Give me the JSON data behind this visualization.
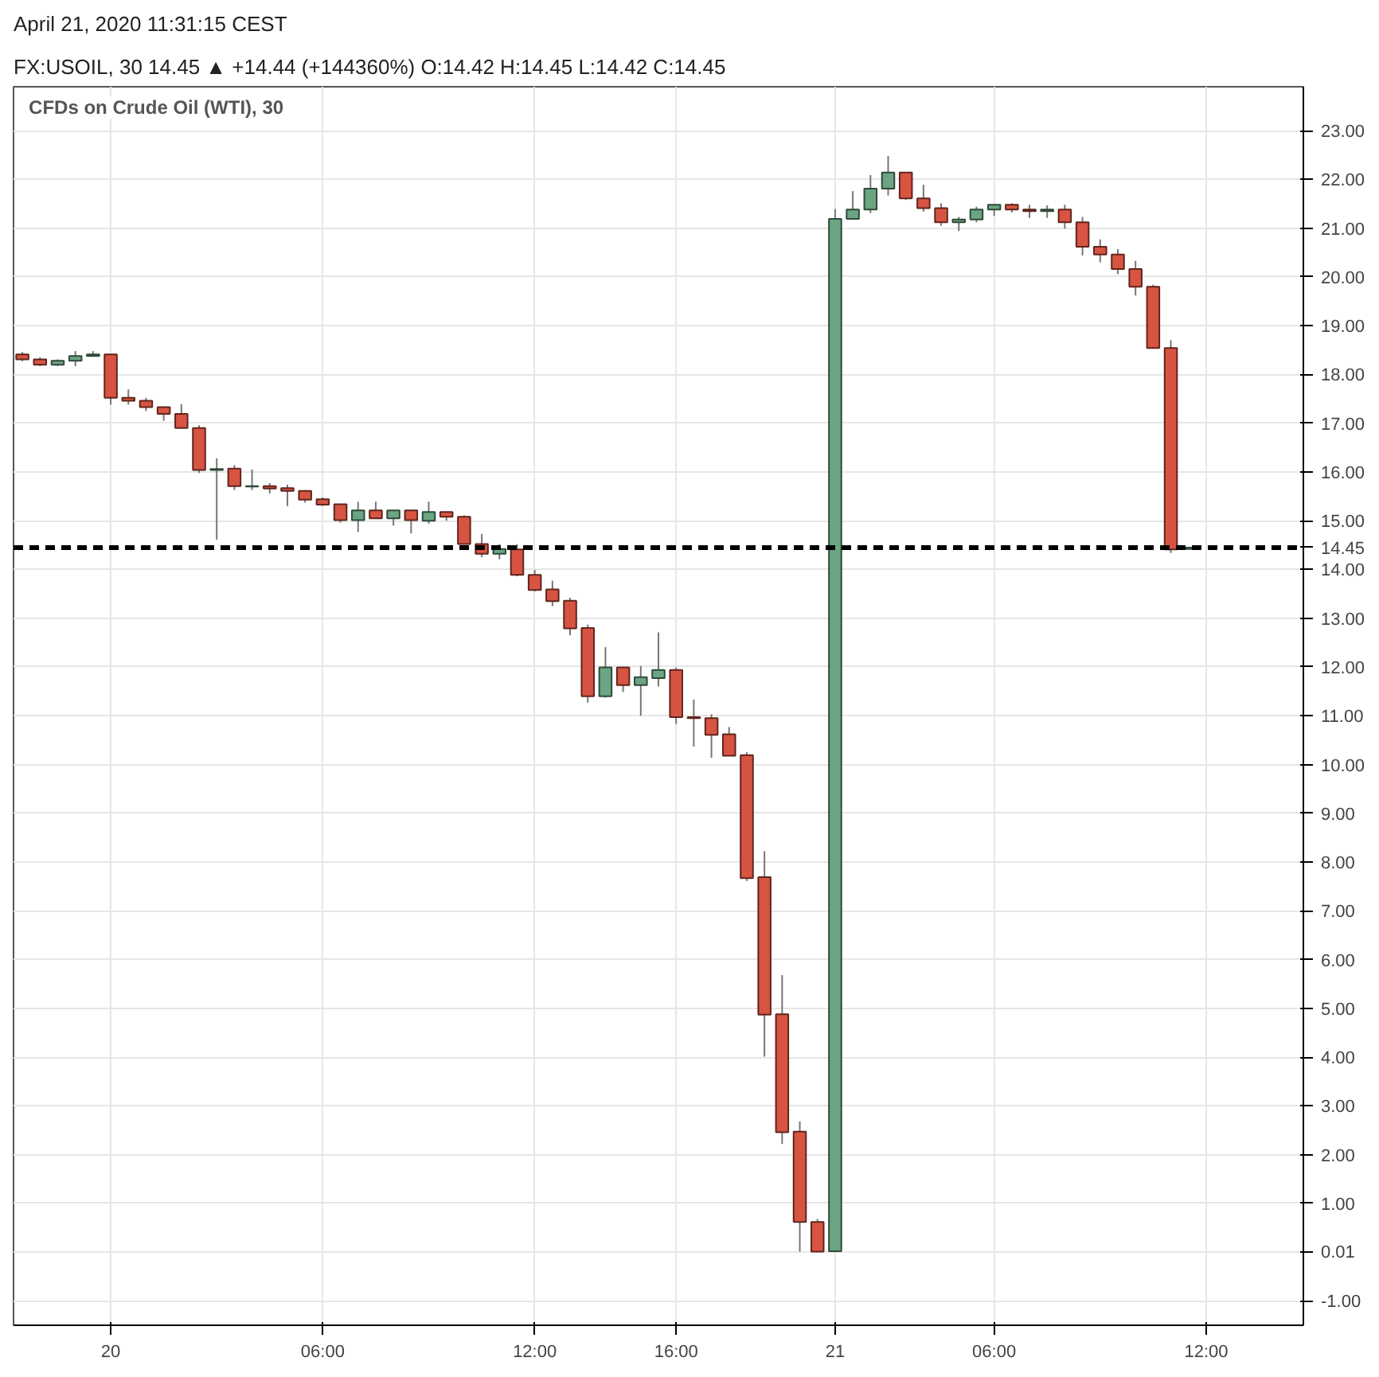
{
  "chart_data": {
    "type": "candlestick",
    "title": "CFDs on Crude Oil (WTI), 30",
    "annotations": [
      "April 21, 2020 11:31:15 CEST",
      "FX:USOIL, 30 14.45 ▲ +14.44 (+144360%) O:14.42 H:14.45 L:14.42 C:14.45"
    ],
    "categories": [
      null,
      null,
      null,
      null,
      null,
      "20",
      null,
      null,
      null,
      null,
      null,
      null,
      null,
      null,
      null,
      null,
      null,
      "06:00",
      null,
      null,
      null,
      null,
      null,
      null,
      null,
      null,
      null,
      null,
      null,
      "12:00",
      null,
      null,
      null,
      null,
      null,
      null,
      null,
      "16:00",
      null,
      null,
      null,
      null,
      null,
      null,
      null,
      null,
      "21",
      null,
      null,
      null,
      null,
      null,
      null,
      null,
      null,
      "06:00",
      null,
      null,
      null,
      null,
      null,
      null,
      null,
      null,
      null,
      null,
      null,
      "12:00",
      null,
      null,
      null,
      null,
      null
    ],
    "ohlc": [
      [
        18.41,
        18.46,
        18.27,
        18.31
      ],
      [
        18.31,
        18.35,
        18.17,
        18.2
      ],
      [
        18.2,
        18.31,
        18.17,
        18.28
      ],
      [
        18.28,
        18.48,
        18.17,
        18.38
      ],
      [
        18.38,
        18.48,
        18.38,
        18.41
      ],
      [
        18.41,
        18.41,
        17.38,
        17.52
      ],
      [
        17.52,
        17.69,
        17.38,
        17.46
      ],
      [
        17.46,
        17.52,
        17.25,
        17.33
      ],
      [
        17.33,
        17.33,
        17.05,
        17.19
      ],
      [
        17.19,
        17.39,
        16.9,
        16.9
      ],
      [
        16.9,
        16.96,
        15.98,
        16.04
      ],
      [
        16.04,
        16.28,
        14.61,
        16.06
      ],
      [
        16.07,
        16.14,
        15.63,
        15.71
      ],
      [
        15.7,
        16.05,
        15.63,
        15.71
      ],
      [
        15.71,
        15.77,
        15.56,
        15.66
      ],
      [
        15.67,
        15.74,
        15.3,
        15.61
      ],
      [
        15.61,
        15.61,
        15.37,
        15.43
      ],
      [
        15.44,
        15.48,
        15.3,
        15.33
      ],
      [
        15.34,
        15.34,
        14.96,
        15.01
      ],
      [
        15.01,
        15.39,
        14.77,
        15.21
      ],
      [
        15.21,
        15.39,
        15.05,
        15.05
      ],
      [
        15.05,
        15.21,
        14.9,
        15.21
      ],
      [
        15.21,
        15.21,
        14.74,
        15.01
      ],
      [
        15.0,
        15.39,
        14.94,
        15.18
      ],
      [
        15.18,
        15.18,
        15.0,
        15.08
      ],
      [
        15.08,
        15.11,
        14.52,
        14.52
      ],
      [
        14.52,
        14.73,
        14.25,
        14.32
      ],
      [
        14.32,
        14.52,
        14.21,
        14.42
      ],
      [
        14.41,
        14.52,
        13.86,
        13.89
      ],
      [
        13.89,
        13.99,
        13.55,
        13.58
      ],
      [
        13.59,
        13.77,
        13.25,
        13.35
      ],
      [
        13.36,
        13.42,
        12.65,
        12.79
      ],
      [
        12.8,
        12.87,
        11.27,
        11.4
      ],
      [
        11.4,
        12.41,
        11.37,
        11.99
      ],
      [
        11.99,
        11.99,
        11.49,
        11.63
      ],
      [
        11.63,
        12.02,
        11.0,
        11.79
      ],
      [
        11.77,
        12.71,
        11.6,
        11.94
      ],
      [
        11.94,
        11.99,
        10.83,
        10.97
      ],
      [
        10.97,
        11.33,
        10.37,
        10.95
      ],
      [
        10.95,
        11.03,
        10.14,
        10.61
      ],
      [
        10.62,
        10.77,
        10.18,
        10.18
      ],
      [
        10.19,
        10.25,
        7.61,
        7.67
      ],
      [
        7.69,
        8.22,
        4.01,
        4.87
      ],
      [
        4.88,
        5.68,
        2.22,
        2.46
      ],
      [
        2.47,
        2.68,
        0.01,
        0.62
      ],
      [
        0.62,
        0.68,
        0.01,
        0.01
      ],
      [
        0.02,
        21.39,
        0.01,
        21.19
      ],
      [
        21.19,
        21.76,
        21.19,
        21.38
      ],
      [
        21.38,
        22.09,
        21.31,
        21.81
      ],
      [
        21.81,
        22.48,
        21.67,
        22.14
      ],
      [
        22.14,
        22.14,
        21.58,
        21.61
      ],
      [
        21.61,
        21.89,
        21.34,
        21.41
      ],
      [
        21.41,
        21.51,
        21.05,
        21.12
      ],
      [
        21.12,
        21.23,
        20.94,
        21.18
      ],
      [
        21.18,
        21.44,
        21.12,
        21.38
      ],
      [
        21.38,
        21.48,
        21.25,
        21.48
      ],
      [
        21.48,
        21.51,
        21.32,
        21.38
      ],
      [
        21.38,
        21.48,
        21.21,
        21.35
      ],
      [
        21.35,
        21.47,
        21.21,
        21.38
      ],
      [
        21.38,
        21.48,
        20.99,
        21.12
      ],
      [
        21.12,
        21.23,
        20.44,
        20.62
      ],
      [
        20.62,
        20.77,
        20.3,
        20.46
      ],
      [
        20.46,
        20.57,
        20.06,
        20.16
      ],
      [
        20.16,
        20.33,
        19.62,
        19.8
      ],
      [
        19.8,
        19.84,
        18.54,
        18.54
      ],
      [
        18.54,
        18.7,
        14.34,
        14.41
      ],
      [
        14.42,
        14.45,
        14.42,
        14.45
      ],
      null,
      null,
      null,
      null,
      null,
      null
    ],
    "colors": [
      "#d75442",
      "#d75442",
      "#6ba583",
      "#6ba583",
      "#6ba583",
      "#d75442",
      "#d75442",
      "#d75442",
      "#d75442",
      "#d75442",
      "#d75442",
      "#6ba583",
      "#d75442",
      "#6ba583",
      "#d75442",
      "#d75442",
      "#d75442",
      "#d75442",
      "#d75442",
      "#6ba583",
      "#d75442",
      "#6ba583",
      "#d75442",
      "#6ba583",
      "#d75442",
      "#d75442",
      "#d75442",
      "#6ba583",
      "#d75442",
      "#d75442",
      "#d75442",
      "#d75442",
      "#d75442",
      "#6ba583",
      "#d75442",
      "#6ba583",
      "#6ba583",
      "#d75442",
      "#d75442",
      "#d75442",
      "#d75442",
      "#d75442",
      "#d75442",
      "#d75442",
      "#d75442",
      "#d75442",
      "#6ba583",
      "#6ba583",
      "#6ba583",
      "#6ba583",
      "#d75442",
      "#d75442",
      "#d75442",
      "#6ba583",
      "#6ba583",
      "#6ba583",
      "#d75442",
      "#d75442",
      "#6ba583",
      "#d75442",
      "#d75442",
      "#d75442",
      "#d75442",
      "#d75442",
      "#d75442",
      "#d75442",
      "#6ba583",
      null,
      null,
      null,
      null,
      null,
      null
    ],
    "ylim": [
      -1.5,
      23.9
    ],
    "yticks": [
      {
        "value": -1,
        "label": "-1.00"
      },
      {
        "value": 0.01,
        "label": "0.01"
      },
      {
        "value": 1,
        "label": "1.00"
      },
      {
        "value": 2,
        "label": "2.00"
      },
      {
        "value": 3,
        "label": "3.00"
      },
      {
        "value": 4,
        "label": "4.00"
      },
      {
        "value": 5,
        "label": "5.00"
      },
      {
        "value": 6,
        "label": "6.00"
      },
      {
        "value": 7,
        "label": "7.00"
      },
      {
        "value": 8,
        "label": "8.00"
      },
      {
        "value": 9,
        "label": "9.00"
      },
      {
        "value": 10,
        "label": "10.00"
      },
      {
        "value": 11,
        "label": "11.00"
      },
      {
        "value": 12,
        "label": "12.00"
      },
      {
        "value": 13,
        "label": "13.00"
      },
      {
        "value": 14,
        "label": "14.00"
      },
      {
        "value": 15,
        "label": "15.00"
      },
      {
        "value": 16,
        "label": "16.00"
      },
      {
        "value": 17,
        "label": "17.00"
      },
      {
        "value": 18,
        "label": "18.00"
      },
      {
        "value": 19,
        "label": "19.00"
      },
      {
        "value": 20,
        "label": "20.00"
      },
      {
        "value": 21,
        "label": "21.00"
      },
      {
        "value": 22,
        "label": "22.00"
      },
      {
        "value": 23,
        "label": "23.00"
      }
    ],
    "ref_lines": [
      {
        "axis": "y",
        "value": 14.45,
        "label": "14.45",
        "color": "#000000",
        "line_style": "dashed"
      }
    ],
    "grid": true
  }
}
